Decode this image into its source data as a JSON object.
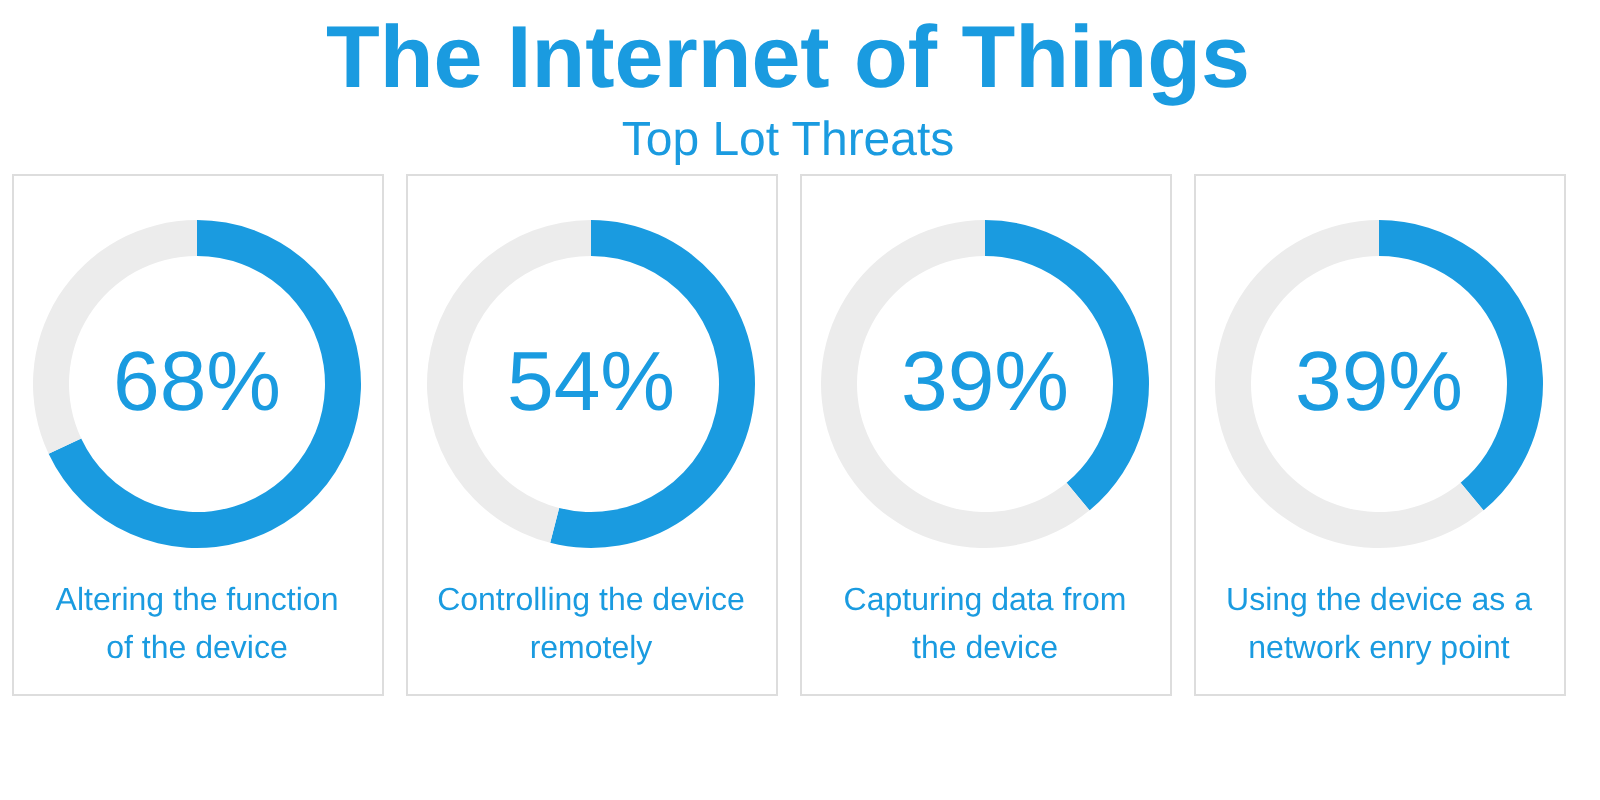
{
  "chart_data": [
    {
      "type": "donut",
      "title": "The Internet of Things",
      "subtitle": "Top Lot Threats",
      "categories": [
        null,
        null
      ],
      "values": [
        68,
        32
      ],
      "colors": [
        "#1a9be0",
        "#ececec"
      ],
      "value_labels": [
        "68%",
        null
      ],
      "annotations": [
        "Altering the function of the device"
      ]
    },
    {
      "type": "donut",
      "categories": [
        null,
        null
      ],
      "values": [
        54,
        46
      ],
      "colors": [
        "#1a9be0",
        "#ececec"
      ],
      "value_labels": [
        "54%",
        null
      ],
      "annotations": [
        "Controlling the device remotely"
      ]
    },
    {
      "type": "donut",
      "categories": [
        null,
        null
      ],
      "values": [
        39,
        61
      ],
      "colors": [
        "#1a9be0",
        "#ececec"
      ],
      "value_labels": [
        "39%",
        null
      ],
      "annotations": [
        "Capturing data from the device"
      ]
    },
    {
      "type": "donut",
      "categories": [
        null,
        null
      ],
      "values": [
        39,
        61
      ],
      "colors": [
        "#1a9be0",
        "#ececec"
      ],
      "value_labels": [
        "39%",
        null
      ],
      "annotations": [
        "Using the device as a network enry point"
      ]
    }
  ]
}
